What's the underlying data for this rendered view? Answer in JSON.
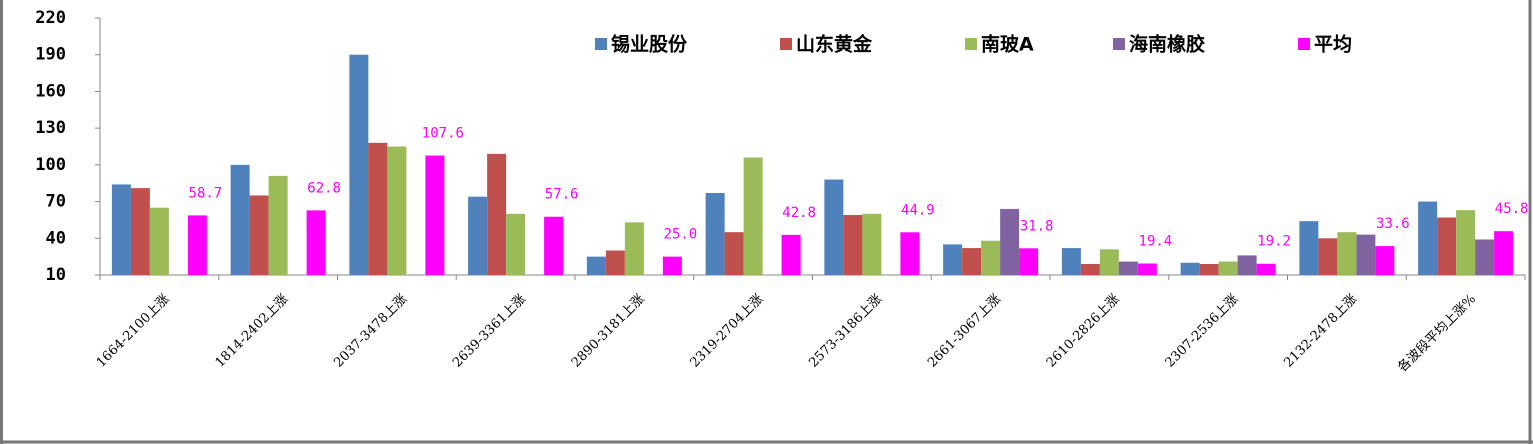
{
  "chart_data": {
    "type": "bar",
    "categories": [
      "1664-2100上涨",
      "1814-2402上涨",
      "2037-3478上涨",
      "2639-3361上涨",
      "2890-3181上涨",
      "2319-2704上涨",
      "2573-3186上涨",
      "2661-3067上涨",
      "2610-2826上涨",
      "2307-2536上涨",
      "2132-2478上涨",
      "各波段平均上涨%"
    ],
    "series": [
      {
        "name": "锡业股份",
        "color": "#4f81bd",
        "values": [
          84,
          100,
          190,
          74,
          25,
          77,
          88,
          35,
          32,
          20,
          54,
          70
        ]
      },
      {
        "name": "山东黄金",
        "color": "#c0504d",
        "values": [
          81,
          75,
          118,
          109,
          30,
          45,
          59,
          32,
          19,
          19,
          40,
          57
        ]
      },
      {
        "name": "南玻A",
        "color": "#9bbb59",
        "values": [
          65,
          91,
          115,
          60,
          53,
          106,
          60,
          38,
          31,
          21,
          45,
          63
        ]
      },
      {
        "name": "海南橡胶",
        "color": "#8064a2",
        "values": [
          null,
          null,
          null,
          null,
          null,
          null,
          null,
          64,
          21,
          26,
          43,
          39
        ]
      },
      {
        "name": "平均",
        "color": "#ff00ff",
        "values": [
          58.7,
          62.8,
          107.6,
          57.6,
          25.0,
          42.8,
          44.9,
          31.8,
          19.4,
          19.2,
          33.6,
          45.8
        ],
        "value_labels": [
          "58.7",
          "62.8",
          "107.6",
          "57.6",
          "25.0",
          "42.8",
          "44.9",
          "31.8",
          "19.4",
          "19.2",
          "33.6",
          "45.8"
        ]
      }
    ],
    "ylim": [
      10,
      220
    ],
    "yticks": [
      10,
      40,
      70,
      100,
      130,
      160,
      190,
      220
    ],
    "grid": false,
    "legend": "top"
  }
}
